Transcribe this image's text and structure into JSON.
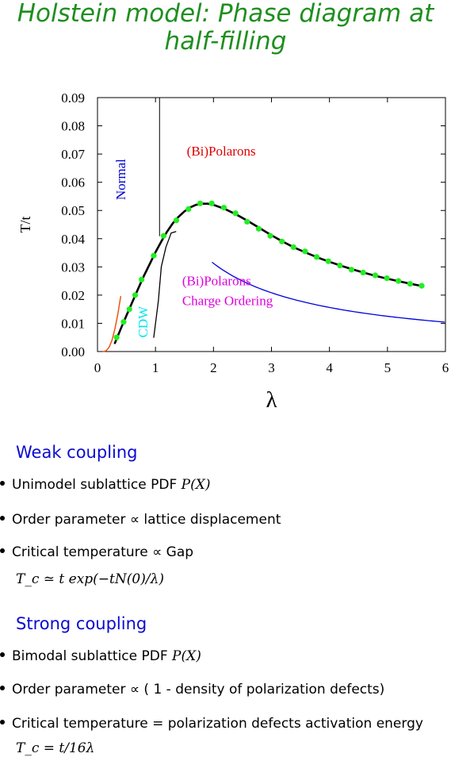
{
  "title": {
    "line1": "Holstein model: Phase diagram at",
    "line2": "half-filling"
  },
  "chart_data": {
    "type": "line",
    "xlabel": "λ",
    "ylabel": "T/t",
    "xlim": [
      0,
      6
    ],
    "ylim": [
      0,
      0.09
    ],
    "xticks": [
      "0",
      "1",
      "2",
      "3",
      "4",
      "5",
      "6"
    ],
    "yticks": [
      "0.00",
      "0.01",
      "0.02",
      "0.03",
      "0.04",
      "0.05",
      "0.06",
      "0.07",
      "0.08",
      "0.09"
    ],
    "grid": false,
    "annotations": {
      "polarons_top": "(Bi)Polarons",
      "normal": "Normal",
      "polarons_co_line1": "(Bi)Polarons",
      "polarons_co_line2": "Charge Ordering",
      "cdw": "CDW"
    },
    "colors": {
      "polarons_top": "#dd0000",
      "normal": "#0000cc",
      "polarons_co": "#dd00dd",
      "cdw": "#00e5ee",
      "points": "#22ee22",
      "fit": "#000000",
      "strong_coupling_curve": "#0000dd",
      "weak_coupling_curve": "#ee5511"
    },
    "series": [
      {
        "type": "scatter",
        "points": [
          [
            0.33,
            0.005
          ],
          [
            0.45,
            0.0105
          ],
          [
            0.55,
            0.015
          ],
          [
            0.65,
            0.02
          ],
          [
            0.76,
            0.0255
          ],
          [
            0.97,
            0.034
          ],
          [
            1.14,
            0.041
          ],
          [
            1.36,
            0.0465
          ],
          [
            1.57,
            0.0505
          ],
          [
            1.77,
            0.0525
          ],
          [
            1.97,
            0.0525
          ],
          [
            2.18,
            0.051
          ],
          [
            2.38,
            0.049
          ],
          [
            2.58,
            0.046
          ],
          [
            2.78,
            0.0435
          ],
          [
            2.98,
            0.041
          ],
          [
            3.18,
            0.039
          ],
          [
            3.38,
            0.037
          ],
          [
            3.58,
            0.0355
          ],
          [
            3.78,
            0.0335
          ],
          [
            3.98,
            0.032
          ],
          [
            4.18,
            0.0305
          ],
          [
            4.38,
            0.029
          ],
          [
            4.58,
            0.028
          ],
          [
            4.79,
            0.027
          ],
          [
            4.99,
            0.026
          ],
          [
            5.19,
            0.025
          ],
          [
            5.39,
            0.024
          ],
          [
            5.59,
            0.0233
          ]
        ]
      },
      {
        "type": "line",
        "points": [
          [
            0.3,
            0.003
          ],
          [
            0.4,
            0.008
          ],
          [
            0.5,
            0.0128
          ],
          [
            0.6,
            0.0175
          ],
          [
            0.7,
            0.0222
          ],
          [
            0.8,
            0.0268
          ],
          [
            0.9,
            0.031
          ],
          [
            1.0,
            0.0352
          ],
          [
            1.1,
            0.039
          ],
          [
            1.2,
            0.0425
          ],
          [
            1.3,
            0.0455
          ],
          [
            1.4,
            0.0478
          ],
          [
            1.5,
            0.0497
          ],
          [
            1.6,
            0.0511
          ],
          [
            1.7,
            0.052
          ],
          [
            1.8,
            0.0524
          ],
          [
            1.9,
            0.0524
          ],
          [
            2.0,
            0.052
          ],
          [
            2.2,
            0.0505
          ],
          [
            2.4,
            0.0485
          ],
          [
            2.6,
            0.0462
          ],
          [
            2.8,
            0.0437
          ],
          [
            3.0,
            0.0412
          ],
          [
            3.2,
            0.0389
          ],
          [
            3.4,
            0.0368
          ],
          [
            3.6,
            0.035
          ],
          [
            3.8,
            0.0333
          ],
          [
            4.0,
            0.0318
          ],
          [
            4.2,
            0.0304
          ],
          [
            4.4,
            0.0291
          ],
          [
            4.6,
            0.0279
          ],
          [
            4.8,
            0.0268
          ],
          [
            5.0,
            0.0258
          ],
          [
            5.2,
            0.0249
          ],
          [
            5.4,
            0.024
          ],
          [
            5.6,
            0.0232
          ]
        ]
      },
      {
        "type": "line",
        "function": "t/16λ",
        "xrange": [
          1.98,
          6.0
        ]
      },
      {
        "type": "line",
        "points": [
          [
            0.1,
            0.0
          ],
          [
            0.15,
            0.0003
          ],
          [
            0.2,
            0.0015
          ],
          [
            0.25,
            0.004
          ],
          [
            0.3,
            0.008
          ],
          [
            0.35,
            0.0132
          ],
          [
            0.4,
            0.0195
          ]
        ]
      },
      {
        "type": "line",
        "points": [
          [
            1.07,
            0.09
          ],
          [
            1.07,
            0.041
          ]
        ]
      },
      {
        "type": "line",
        "points": [
          [
            0.97,
            0.005
          ],
          [
            1.05,
            0.018
          ],
          [
            1.1,
            0.03
          ],
          [
            1.18,
            0.037
          ],
          [
            1.27,
            0.042
          ],
          [
            1.35,
            0.0425
          ]
        ]
      }
    ]
  },
  "weak": {
    "heading": "Weak coupling",
    "item1_text": "Unimodel sublattice PDF ",
    "item1_math": "P(X)",
    "item2_text": "Order parameter ∝ lattice displacement",
    "item3_text": "Critical temperature ∝ Gap",
    "formula": "T_c ≃ t exp(−tN(0)/λ)"
  },
  "strong": {
    "heading": "Strong coupling",
    "item1_text": "Bimodal sublattice PDF ",
    "item1_math": "P(X)",
    "item2_text": "Order parameter ∝ ( 1 - density of polarization defects)",
    "item3_text": "Critical temperature = polarization defects activation energy",
    "formula": "T_c = t/16λ"
  }
}
